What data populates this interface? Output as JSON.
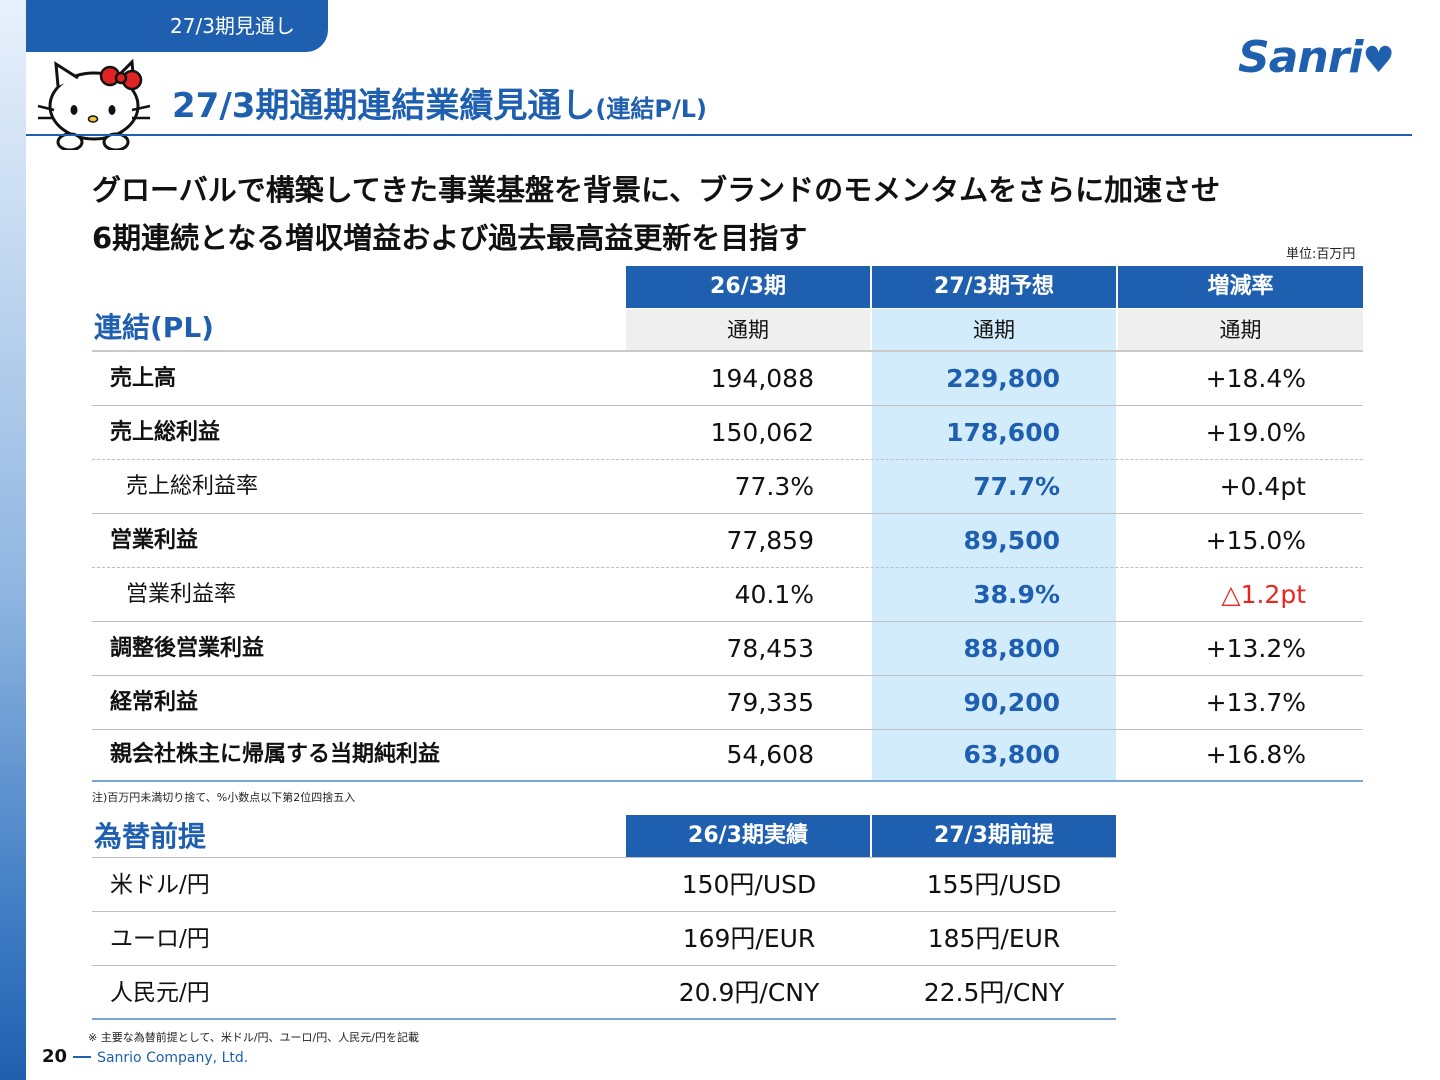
{
  "section_tag": "27/3期見通し",
  "logo_text": "Sanri",
  "title": {
    "main": "27/3期通期連結業績見通し",
    "sub": "(連結P/L)"
  },
  "headline": {
    "line1": "グローバルで構築してきた事業基盤を背景に、ブランドのモメンタムをさらに加速させ",
    "line2": "6期連続となる増収増益および過去最高益更新を目指す"
  },
  "unit": "単位:百万円",
  "pl_table": {
    "label": "連結(PL)",
    "headers": [
      "26/3期",
      "27/3期予想",
      "増減率"
    ],
    "subheaders": [
      "通期",
      "通期",
      "通期"
    ],
    "rows": [
      {
        "label": "売上高",
        "v1": "194,088",
        "v2": "229,800",
        "v3": "+18.4%"
      },
      {
        "label": "売上総利益",
        "v1": "150,062",
        "v2": "178,600",
        "v3": "+19.0%"
      },
      {
        "label": "売上総利益率",
        "v1": "77.3%",
        "v2": "77.7%",
        "v3": "+0.4pt"
      },
      {
        "label": "営業利益",
        "v1": "77,859",
        "v2": "89,500",
        "v3": "+15.0%"
      },
      {
        "label": "営業利益率",
        "v1": "40.1%",
        "v2": "38.9%",
        "v3": "△1.2pt"
      },
      {
        "label": "調整後営業利益",
        "v1": "78,453",
        "v2": "88,800",
        "v3": "+13.2%"
      },
      {
        "label": "経常利益",
        "v1": "79,335",
        "v2": "90,200",
        "v3": "+13.7%"
      },
      {
        "label": "親会社株主に帰属する当期純利益",
        "v1": "54,608",
        "v2": "63,800",
        "v3": "+16.8%"
      }
    ],
    "note": "注)百万円未満切り捨て、%小数点以下第2位四捨五入"
  },
  "fx_table": {
    "label": "為替前提",
    "headers": [
      "26/3期実績",
      "27/3期前提"
    ],
    "rows": [
      {
        "label": "米ドル/円",
        "c1": "150円/USD",
        "c2": "155円/USD"
      },
      {
        "label": "ユーロ/円",
        "c1": "169円/EUR",
        "c2": "185円/EUR"
      },
      {
        "label": "人民元/円",
        "c1": "20.9円/CNY",
        "c2": "22.5円/CNY"
      }
    ],
    "note": "※ 主要な為替前提として、米ドル/円、ユーロ/円、人民元/円を記載"
  },
  "footer": {
    "page": "20",
    "company": "Sanrio Company, Ltd."
  },
  "colors": {
    "brand_blue": "#1f5fb0",
    "highlight": "#d3ecfc",
    "negative": "#e8261f"
  }
}
